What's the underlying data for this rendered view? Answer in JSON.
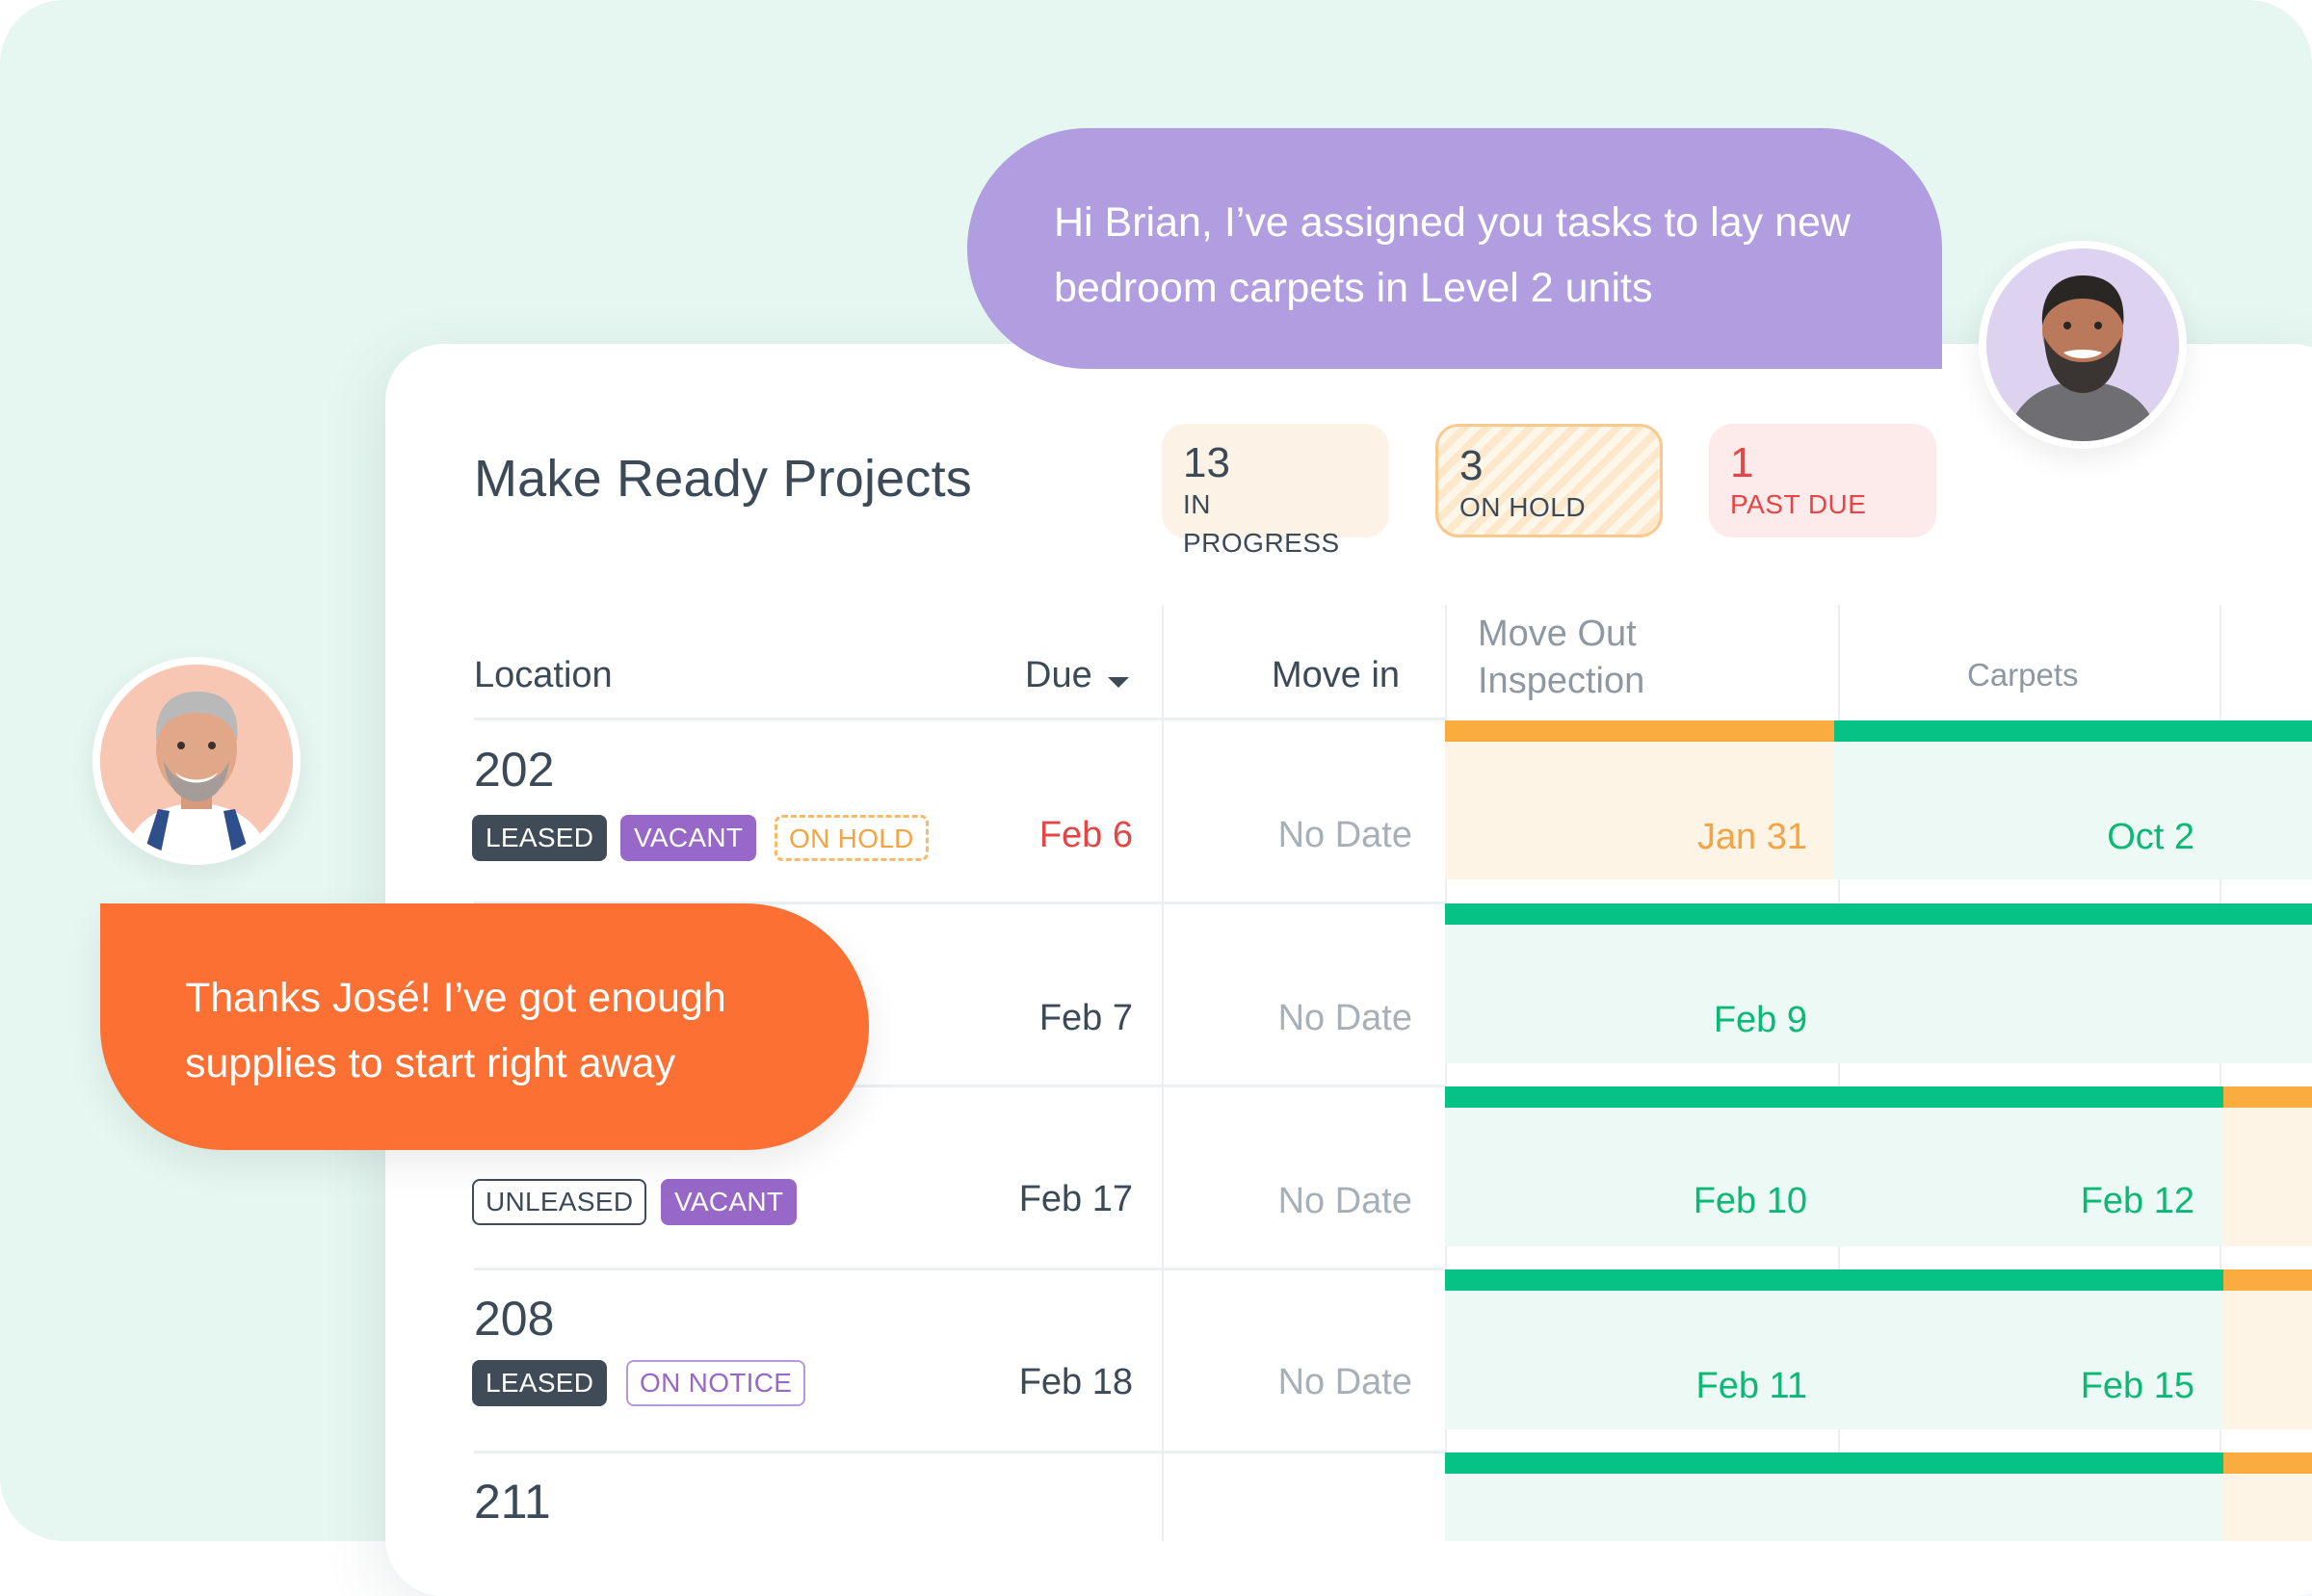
{
  "panel": {
    "title": "Make Ready Projects",
    "summary": [
      {
        "count": "13",
        "label": "IN PROGRESS"
      },
      {
        "count": "3",
        "label": "ON HOLD"
      },
      {
        "count": "1",
        "label": "PAST DUE"
      }
    ]
  },
  "table": {
    "columns": {
      "location": "Location",
      "due": "Due",
      "move_in": "Move in",
      "move_out_line1": "Move Out",
      "move_out_line2": "Inspection",
      "carpets": "Carpets"
    },
    "rows": [
      {
        "location": "202",
        "tags": [
          "LEASED",
          "VACANT",
          "ON HOLD"
        ],
        "due": "Feb 6",
        "move_in": "No Date",
        "inspection": "Jan 31",
        "carpets": "Oct 2"
      },
      {
        "location": "",
        "tags": [],
        "due": "Feb 7",
        "move_in": "No Date",
        "inspection": "Feb 9",
        "carpets": ""
      },
      {
        "location": "",
        "tags": [
          "UNLEASED",
          "VACANT"
        ],
        "due": "Feb 17",
        "move_in": "No Date",
        "inspection": "Feb 10",
        "carpets": "Feb 12"
      },
      {
        "location": "208",
        "tags": [
          "LEASED",
          "ON NOTICE"
        ],
        "due": "Feb 18",
        "move_in": "No Date",
        "inspection": "Feb 11",
        "carpets": "Feb 15"
      },
      {
        "location": "211",
        "tags": [],
        "due": "",
        "move_in": "",
        "inspection": "",
        "carpets": ""
      }
    ]
  },
  "chat": {
    "manager_message": "Hi Brian, I’ve assigned you tasks to lay new bedroom carpets in Level 2 units",
    "tech_reply": "Thanks José! I’ve got enough supplies to start right away"
  },
  "colors": {
    "background": "#e6f7f1",
    "purple_bubble": "#b19ee0",
    "orange_bubble": "#fd7034",
    "green_status": "#06c285",
    "orange_status": "#fbac3e",
    "past_due_red": "#e64545"
  },
  "icons": {
    "due_sort": "caret-down-icon",
    "manager_avatar": "avatar-man-beard",
    "tech_avatar": "avatar-man-gray-hair"
  }
}
